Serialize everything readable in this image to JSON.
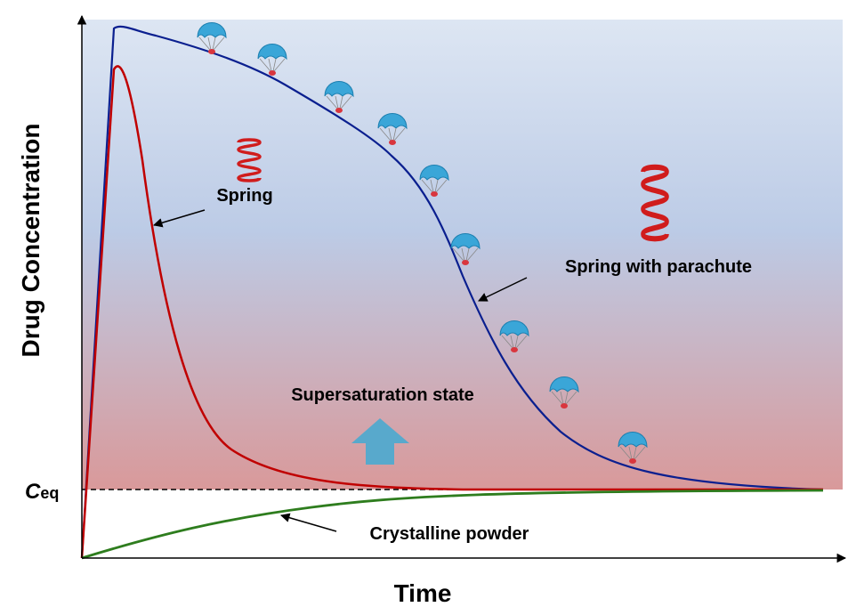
{
  "axes": {
    "y_label": "Drug Concentration",
    "x_label": "Time"
  },
  "ceq": {
    "symbol": "C",
    "subscript": "eq"
  },
  "labels": {
    "spring": "Spring",
    "spring_with_parachute": "Spring with parachute",
    "supersaturation": "Supersaturation state",
    "crystalline": "Crystalline powder"
  }
}
